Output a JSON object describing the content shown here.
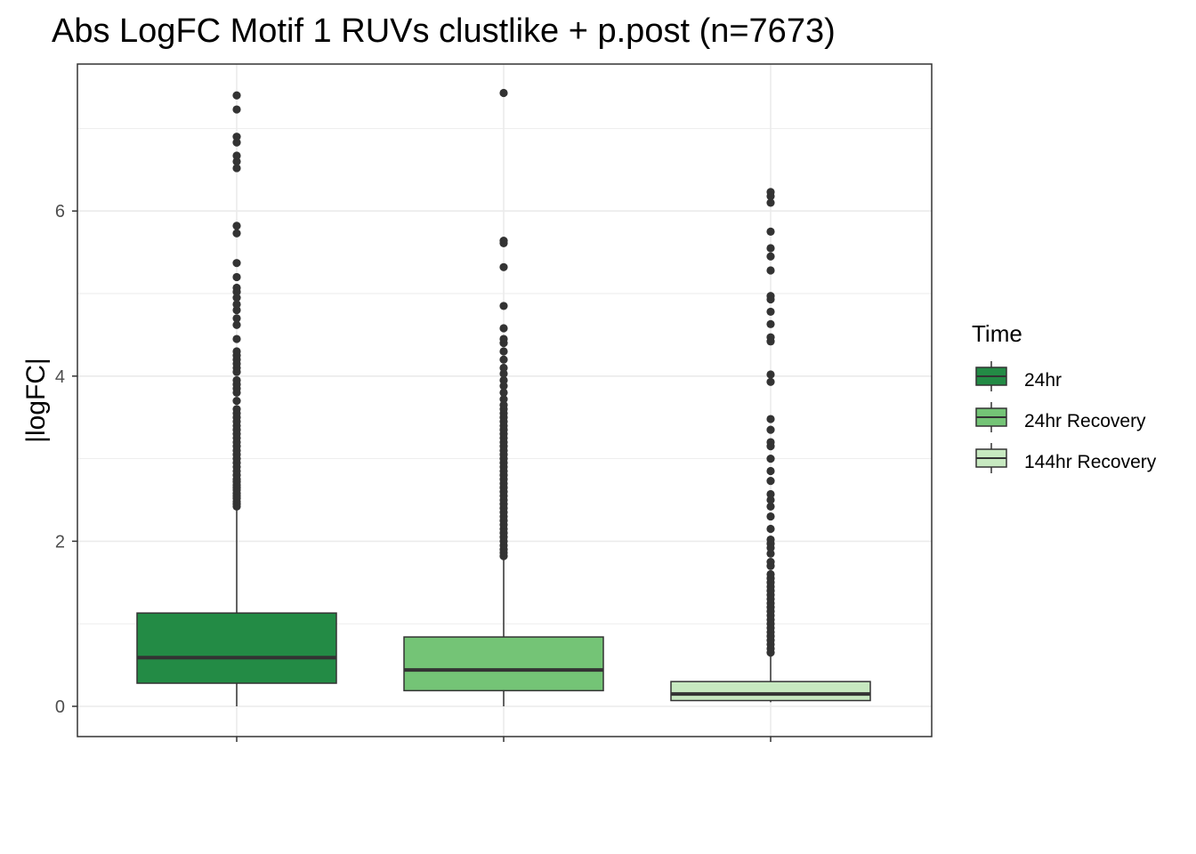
{
  "chart_data": {
    "type": "boxplot",
    "title": "Abs LogFC Motif 1 RUVs clustlike + p.post (n=7673)",
    "xlabel": "",
    "ylabel": "|logFC|",
    "ylim": [
      -0.36,
      7.8
    ],
    "yticks": [
      0,
      2,
      4,
      6
    ],
    "grid": true,
    "legend": {
      "title": "Time",
      "position": "right"
    },
    "colors": {
      "24hr": "#238b45",
      "24hr Recovery": "#74c476",
      "144hr Recovery": "#c7e9c0",
      "outline": "#333333",
      "grid": "#ebebeb"
    },
    "series": [
      {
        "name": "24hr",
        "whisker_low": 0.0,
        "q1": 0.28,
        "median": 0.59,
        "q3": 1.13,
        "whisker_high": 2.4,
        "outliers": [
          2.42,
          2.45,
          2.48,
          2.52,
          2.55,
          2.58,
          2.62,
          2.65,
          2.68,
          2.72,
          2.75,
          2.8,
          2.85,
          2.9,
          2.95,
          3.0,
          3.05,
          3.1,
          3.15,
          3.2,
          3.25,
          3.3,
          3.35,
          3.4,
          3.45,
          3.5,
          3.55,
          3.6,
          3.7,
          3.8,
          3.85,
          3.9,
          3.95,
          4.05,
          4.1,
          4.15,
          4.2,
          4.25,
          4.3,
          4.45,
          4.62,
          4.7,
          4.8,
          4.87,
          4.95,
          5.02,
          5.07,
          5.2,
          5.37,
          5.73,
          5.82,
          6.52,
          6.6,
          6.67,
          6.83,
          6.9,
          7.23,
          7.4
        ]
      },
      {
        "name": "24hr Recovery",
        "whisker_low": 0.0,
        "q1": 0.19,
        "median": 0.44,
        "q3": 0.84,
        "whisker_high": 1.8,
        "outliers": [
          1.82,
          1.86,
          1.9,
          1.95,
          2.0,
          2.05,
          2.1,
          2.15,
          2.2,
          2.25,
          2.3,
          2.35,
          2.4,
          2.45,
          2.5,
          2.55,
          2.6,
          2.65,
          2.7,
          2.75,
          2.8,
          2.85,
          2.9,
          2.95,
          3.0,
          3.05,
          3.1,
          3.15,
          3.2,
          3.25,
          3.3,
          3.35,
          3.4,
          3.45,
          3.5,
          3.55,
          3.6,
          3.65,
          3.72,
          3.8,
          3.88,
          3.95,
          4.03,
          4.1,
          4.2,
          4.3,
          4.4,
          4.45,
          4.58,
          4.85,
          5.32,
          5.61,
          5.64,
          7.43
        ]
      },
      {
        "name": "144hr Recovery",
        "whisker_low": 0.05,
        "q1": 0.07,
        "median": 0.15,
        "q3": 0.3,
        "whisker_high": 0.63,
        "outliers": [
          0.65,
          0.7,
          0.75,
          0.8,
          0.85,
          0.9,
          0.95,
          1.0,
          1.05,
          1.1,
          1.15,
          1.2,
          1.25,
          1.3,
          1.35,
          1.4,
          1.45,
          1.5,
          1.55,
          1.6,
          1.7,
          1.75,
          1.85,
          1.92,
          1.97,
          2.02,
          2.15,
          2.3,
          2.42,
          2.5,
          2.57,
          2.73,
          2.85,
          3.0,
          3.15,
          3.2,
          3.35,
          3.48,
          3.93,
          4.02,
          4.42,
          4.47,
          4.63,
          4.78,
          4.93,
          4.97,
          5.28,
          5.45,
          5.55,
          5.75,
          6.1,
          6.18,
          6.23
        ]
      }
    ]
  }
}
